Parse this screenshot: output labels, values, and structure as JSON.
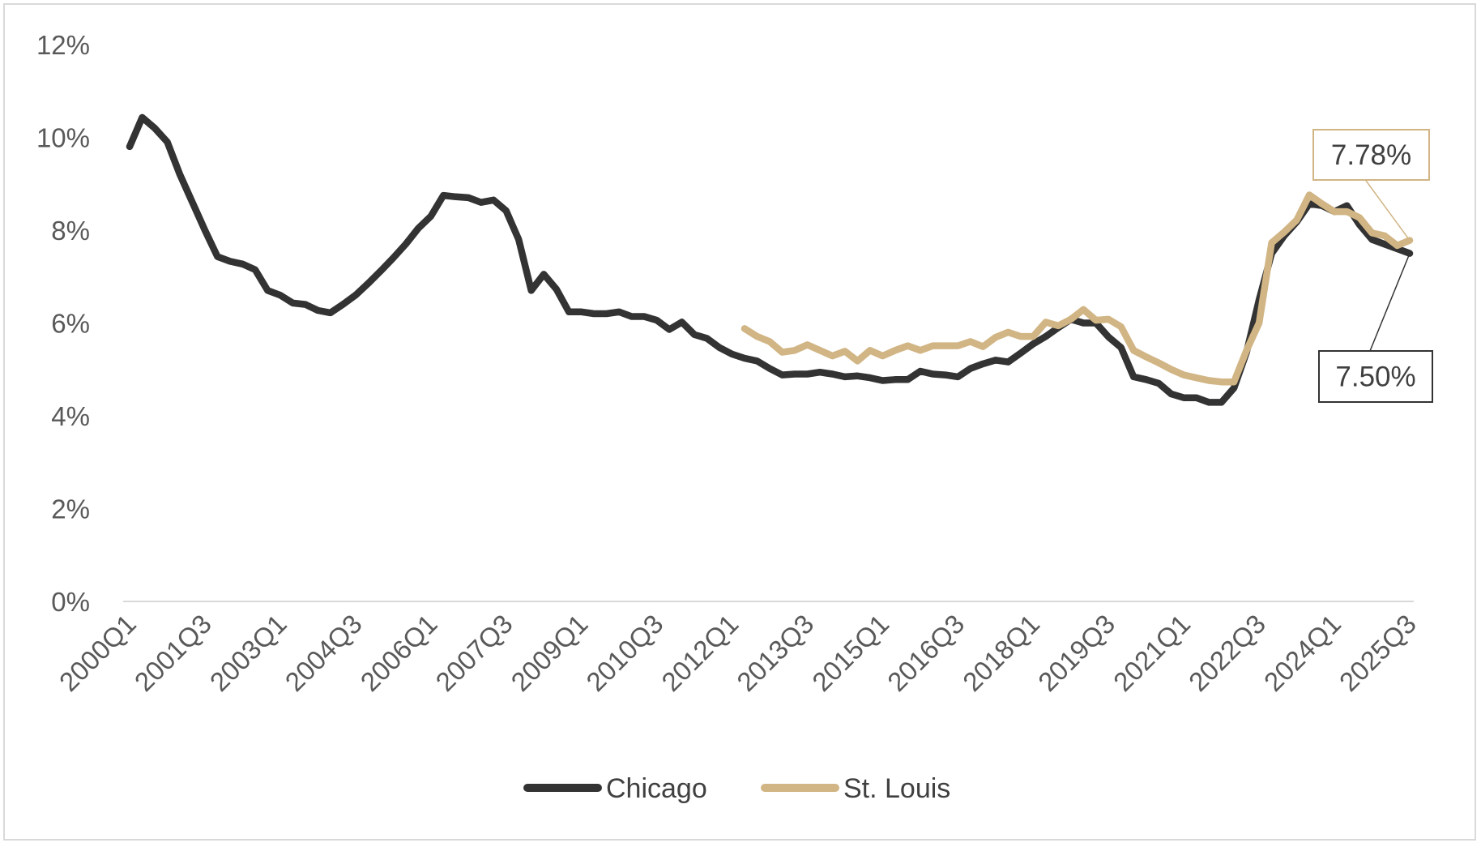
{
  "chart_data": {
    "type": "line",
    "title": "",
    "xlabel": "",
    "ylabel": "",
    "ylim": [
      0,
      12
    ],
    "y_ticks": [
      "0%",
      "2%",
      "4%",
      "6%",
      "8%",
      "10%",
      "12%"
    ],
    "y_tick_values": [
      0,
      2,
      4,
      6,
      8,
      10,
      12
    ],
    "grid": false,
    "legend_position": "bottom",
    "x_tick_labels": [
      "2000Q1",
      "2001Q3",
      "2003Q1",
      "2004Q3",
      "2006Q1",
      "2007Q3",
      "2009Q1",
      "2010Q3",
      "2012Q1",
      "2013Q3",
      "2015Q1",
      "2016Q3",
      "2018Q1",
      "2019Q3",
      "2021Q1",
      "2022Q3",
      "2024Q1",
      "2025Q3"
    ],
    "categories": [
      "2000Q1",
      "2000Q2",
      "2000Q3",
      "2000Q4",
      "2001Q1",
      "2001Q2",
      "2001Q3",
      "2001Q4",
      "2002Q1",
      "2002Q2",
      "2002Q3",
      "2002Q4",
      "2003Q1",
      "2003Q2",
      "2003Q3",
      "2003Q4",
      "2004Q1",
      "2004Q2",
      "2004Q3",
      "2004Q4",
      "2005Q1",
      "2005Q2",
      "2005Q3",
      "2005Q4",
      "2006Q1",
      "2006Q2",
      "2006Q3",
      "2006Q4",
      "2007Q1",
      "2007Q2",
      "2007Q3",
      "2007Q4",
      "2008Q1",
      "2008Q2",
      "2008Q3",
      "2008Q4",
      "2009Q1",
      "2009Q2",
      "2009Q3",
      "2009Q4",
      "2010Q1",
      "2010Q2",
      "2010Q3",
      "2010Q4",
      "2011Q1",
      "2011Q2",
      "2011Q3",
      "2011Q4",
      "2012Q1",
      "2012Q2",
      "2012Q3",
      "2012Q4",
      "2013Q1",
      "2013Q2",
      "2013Q3",
      "2013Q4",
      "2014Q1",
      "2014Q2",
      "2014Q3",
      "2014Q4",
      "2015Q1",
      "2015Q2",
      "2015Q3",
      "2015Q4",
      "2016Q1",
      "2016Q2",
      "2016Q3",
      "2016Q4",
      "2017Q1",
      "2017Q2",
      "2017Q3",
      "2017Q4",
      "2018Q1",
      "2018Q2",
      "2018Q3",
      "2018Q4",
      "2019Q1",
      "2019Q2",
      "2019Q3",
      "2019Q4",
      "2020Q1",
      "2020Q2",
      "2020Q3",
      "2020Q4",
      "2021Q1",
      "2021Q2",
      "2021Q3",
      "2021Q4",
      "2022Q1",
      "2022Q2",
      "2022Q3",
      "2022Q4",
      "2023Q1",
      "2023Q2",
      "2023Q3",
      "2023Q4",
      "2024Q1",
      "2024Q2",
      "2024Q3",
      "2024Q4",
      "2025Q1",
      "2025Q2",
      "2025Q3"
    ],
    "series": [
      {
        "name": "Chicago",
        "color": "#333333",
        "values": [
          9.8,
          10.43,
          10.2,
          9.9,
          9.2,
          8.6,
          8.0,
          7.43,
          7.33,
          7.27,
          7.15,
          6.7,
          6.6,
          6.43,
          6.4,
          6.27,
          6.22,
          6.4,
          6.6,
          6.85,
          7.12,
          7.4,
          7.7,
          8.04,
          8.3,
          8.75,
          8.72,
          8.7,
          8.6,
          8.65,
          8.42,
          7.8,
          6.7,
          7.05,
          6.73,
          6.24,
          6.24,
          6.2,
          6.2,
          6.24,
          6.14,
          6.14,
          6.06,
          5.86,
          6.02,
          5.75,
          5.67,
          5.47,
          5.33,
          5.24,
          5.18,
          5.02,
          4.88,
          4.9,
          4.9,
          4.94,
          4.9,
          4.84,
          4.86,
          4.82,
          4.76,
          4.78,
          4.78,
          4.96,
          4.9,
          4.88,
          4.84,
          5.02,
          5.12,
          5.2,
          5.16,
          5.35,
          5.55,
          5.71,
          5.9,
          6.08,
          6.0,
          6.0,
          5.7,
          5.47,
          4.84,
          4.78,
          4.7,
          4.47,
          4.39,
          4.39,
          4.29,
          4.29,
          4.6,
          5.37,
          6.5,
          7.5,
          7.88,
          8.18,
          8.57,
          8.53,
          8.4,
          8.53,
          8.12,
          7.8,
          7.7,
          7.6,
          7.5
        ]
      },
      {
        "name": "St. Louis",
        "color": "#D1B584",
        "values": [
          null,
          null,
          null,
          null,
          null,
          null,
          null,
          null,
          null,
          null,
          null,
          null,
          null,
          null,
          null,
          null,
          null,
          null,
          null,
          null,
          null,
          null,
          null,
          null,
          null,
          null,
          null,
          null,
          null,
          null,
          null,
          null,
          null,
          null,
          null,
          null,
          null,
          null,
          null,
          null,
          null,
          null,
          null,
          null,
          null,
          null,
          null,
          null,
          null,
          5.88,
          5.71,
          5.6,
          5.37,
          5.41,
          5.53,
          5.41,
          5.29,
          5.39,
          5.18,
          5.41,
          5.29,
          5.41,
          5.51,
          5.41,
          5.51,
          5.51,
          5.51,
          5.6,
          5.49,
          5.69,
          5.8,
          5.71,
          5.71,
          6.02,
          5.94,
          6.08,
          6.29,
          6.06,
          6.08,
          5.92,
          5.41,
          5.27,
          5.14,
          5.0,
          4.88,
          4.82,
          4.76,
          4.73,
          4.73,
          5.41,
          6.0,
          7.73,
          7.96,
          8.22,
          8.76,
          8.57,
          8.4,
          8.4,
          8.27,
          7.94,
          7.88,
          7.67,
          7.78
        ]
      }
    ],
    "annotations": [
      {
        "series": "St. Louis",
        "label": "7.78%",
        "color": "#D1B584"
      },
      {
        "series": "Chicago",
        "label": "7.50%",
        "color": "#333333"
      }
    ]
  },
  "axis_color": "#d9d9d9"
}
